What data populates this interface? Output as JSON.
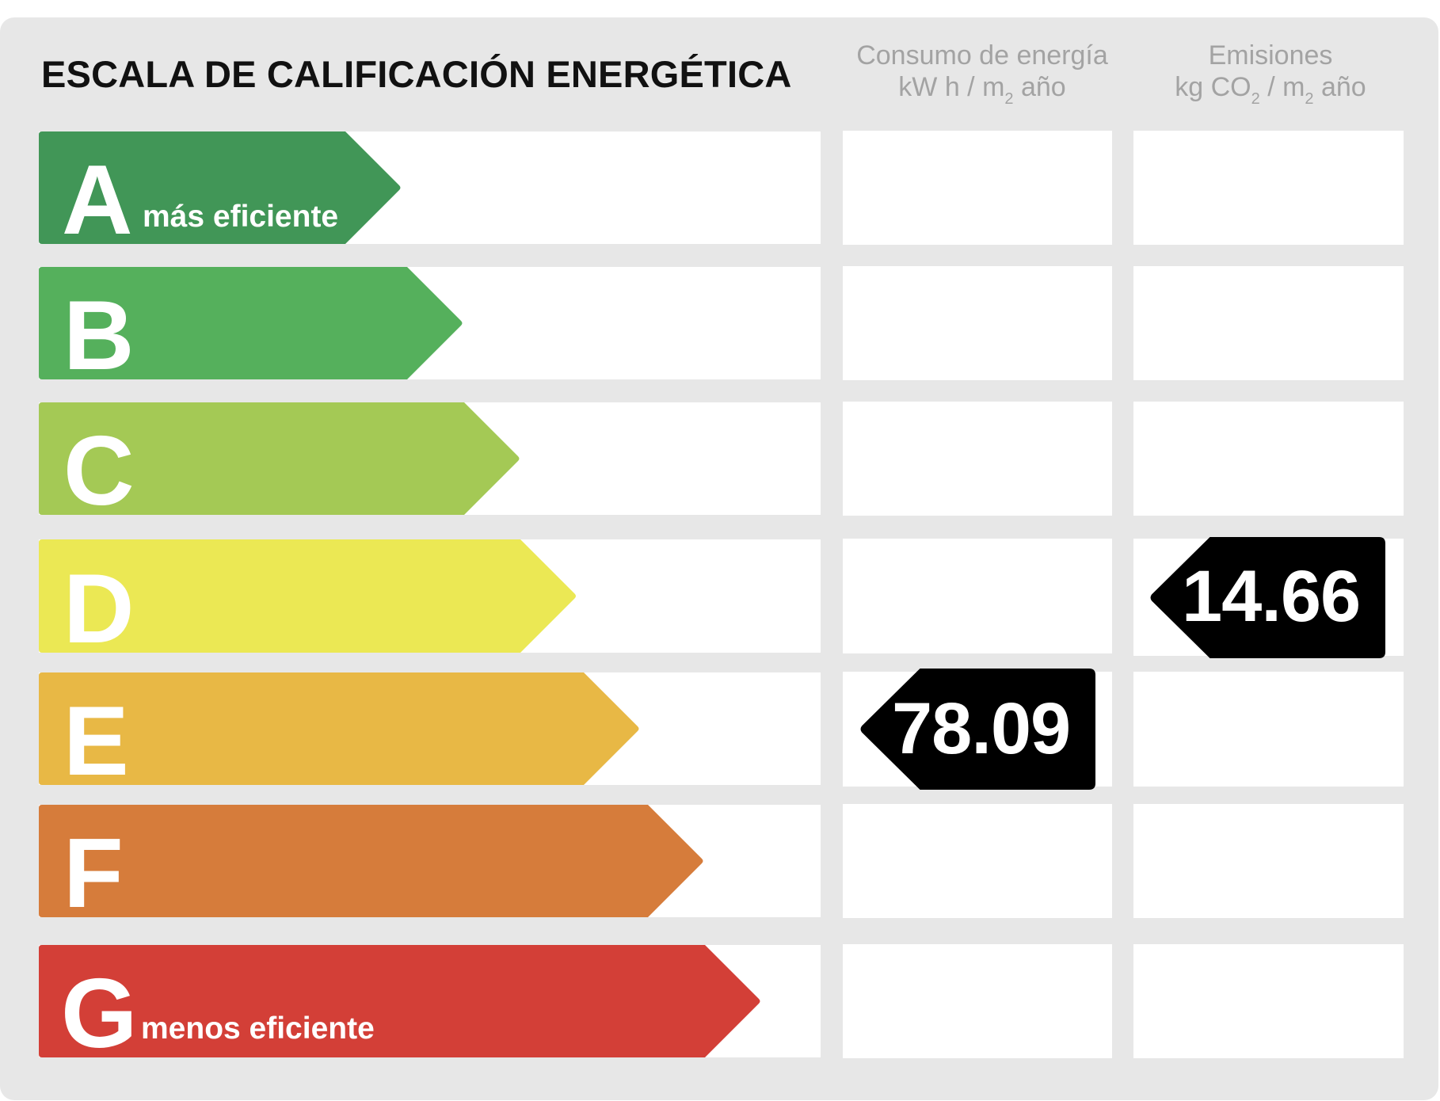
{
  "title": "ESCALA DE CALIFICACIÓN ENERGÉTICA",
  "columns": {
    "energy": {
      "line1": "Consumo de energía",
      "unit_a": "kW h / m",
      "unit_sub": "2",
      "unit_b": " año"
    },
    "emissions": {
      "line1": "Emisiones",
      "unit_a": "kg CO",
      "unit_sub1": "2",
      "unit_mid": " / m",
      "unit_sub2": "2",
      "unit_b": " año"
    }
  },
  "classes": [
    {
      "letter": "A",
      "note": "más eficiente",
      "color": "#419657"
    },
    {
      "letter": "B",
      "note": "",
      "color": "#55b05c"
    },
    {
      "letter": "C",
      "note": "",
      "color": "#a4c955"
    },
    {
      "letter": "D",
      "note": "",
      "color": "#ebe854"
    },
    {
      "letter": "E",
      "note": "",
      "color": "#e8b845"
    },
    {
      "letter": "F",
      "note": "",
      "color": "#d67c3b"
    },
    {
      "letter": "G",
      "note": "menos eficiente",
      "color": "#d33f37"
    }
  ],
  "ratings": {
    "energy": {
      "class": "E",
      "value": "78.09"
    },
    "emissions": {
      "class": "D",
      "value": "14.66"
    }
  },
  "badge_color": "#000000"
}
